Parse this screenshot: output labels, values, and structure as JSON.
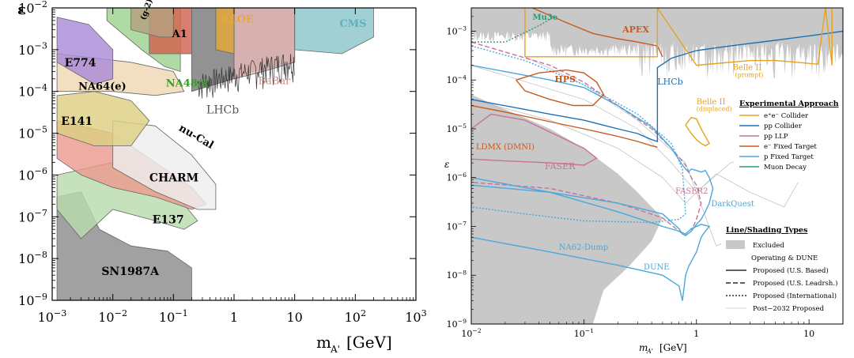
{
  "chart_data": [
    {
      "type": "area",
      "xlabel": "m",
      "xlabel_sub": "A'",
      "xlabel_unit": "[GeV]",
      "ylabel": "ε",
      "xscale": "log",
      "yscale": "log",
      "xlim": [
        0.001,
        1000
      ],
      "ylim": [
        1e-09,
        0.01
      ],
      "x_ticks": [
        "10^-3",
        "10^-2",
        "10^-1",
        "1",
        "10",
        "10^2",
        "10^3"
      ],
      "y_ticks": [
        "10^-9",
        "10^-8",
        "10^-7",
        "10^-6",
        "10^-5",
        "10^-4",
        "10^-3",
        "10^-2"
      ],
      "series": [
        {
          "name": "SN1987A",
          "color": "#8c8c8c",
          "points": [
            [
              0.0012,
              1e-09
            ],
            [
              0.0012,
              3e-07
            ],
            [
              0.003,
              4e-07
            ],
            [
              0.006,
              5e-08
            ],
            [
              0.02,
              2e-08
            ],
            [
              0.08,
              1.5e-08
            ],
            [
              0.2,
              6e-09
            ],
            [
              0.2,
              1e-09
            ]
          ]
        },
        {
          "name": "E137",
          "color": "#b9dcae",
          "points": [
            [
              0.0012,
              1.5e-07
            ],
            [
              0.0012,
              1e-06
            ],
            [
              0.01,
              2e-06
            ],
            [
              0.05,
              6e-07
            ],
            [
              0.15,
              2e-07
            ],
            [
              0.25,
              8e-08
            ],
            [
              0.15,
              5e-08
            ],
            [
              0.05,
              8e-08
            ],
            [
              0.01,
              1.5e-07
            ],
            [
              0.003,
              3e-08
            ]
          ]
        },
        {
          "name": "CHARM",
          "color": "#ec9a8e",
          "points": [
            [
              0.0012,
              2.5e-06
            ],
            [
              0.0012,
              2e-05
            ],
            [
              0.01,
              1e-05
            ],
            [
              0.05,
              2e-06
            ],
            [
              0.2,
              5e-07
            ],
            [
              0.35,
              2e-07
            ],
            [
              0.2,
              1.5e-07
            ],
            [
              0.05,
              3e-07
            ],
            [
              0.01,
              5e-07
            ],
            [
              0.003,
              1e-06
            ]
          ]
        },
        {
          "name": "nu-Cal",
          "color": "#eeeeee",
          "points": [
            [
              0.01,
              2e-05
            ],
            [
              0.05,
              1.5e-05
            ],
            [
              0.2,
              3e-06
            ],
            [
              0.5,
              6e-07
            ],
            [
              0.5,
              1.5e-07
            ],
            [
              0.25,
              1.5e-07
            ],
            [
              0.05,
              4e-07
            ],
            [
              0.01,
              1.5e-06
            ]
          ]
        },
        {
          "name": "E141",
          "color": "#ddd083",
          "points": [
            [
              0.0012,
              1e-05
            ],
            [
              0.0012,
              8e-05
            ],
            [
              0.005,
              0.0001
            ],
            [
              0.02,
              6e-05
            ],
            [
              0.04,
              2e-05
            ],
            [
              0.02,
              5e-06
            ],
            [
              0.005,
              5e-06
            ]
          ]
        },
        {
          "name": "NA64(e)",
          "color": "#efd7b3",
          "points": [
            [
              0.0012,
              0.0001
            ],
            [
              0.0012,
              0.0008
            ],
            [
              0.02,
              0.0005
            ],
            [
              0.1,
              0.0003
            ],
            [
              0.15,
              0.0001
            ],
            [
              0.05,
              8e-05
            ],
            [
              0.01,
              0.0001
            ]
          ]
        },
        {
          "name": "E774",
          "color": "#a98bd8",
          "points": [
            [
              0.0012,
              0.0005
            ],
            [
              0.0012,
              0.006
            ],
            [
              0.004,
              0.004
            ],
            [
              0.01,
              0.001
            ],
            [
              0.01,
              0.0002
            ],
            [
              0.005,
              0.00015
            ]
          ]
        },
        {
          "name": "NA48/2",
          "color": "#9ed28f",
          "points": [
            [
              0.008,
              0.005
            ],
            [
              0.03,
              0.001
            ],
            [
              0.07,
              0.0004
            ],
            [
              0.13,
              0.0003
            ],
            [
              0.13,
              0.01
            ],
            [
              0.008,
              0.01
            ]
          ]
        },
        {
          "name": "A1",
          "color": "#d26150",
          "points": [
            [
              0.04,
              0.01
            ],
            [
              0.04,
              0.0008
            ],
            [
              0.2,
              0.0008
            ],
            [
              0.2,
              0.01
            ]
          ]
        },
        {
          "name": "LHCb",
          "color": "#7a7a7a",
          "points": [
            [
              0.2,
              0.0001
            ],
            [
              1,
              0.0002
            ],
            [
              2,
              0.0003
            ],
            [
              10,
              0.0005
            ],
            [
              10,
              0.01
            ],
            [
              0.2,
              0.01
            ]
          ]
        },
        {
          "name": "BaBar",
          "color": "#e5b8b6",
          "points": [
            [
              1,
              0.0002
            ],
            [
              3,
              0.0003
            ],
            [
              10,
              0.0005
            ],
            [
              10,
              0.01
            ],
            [
              1,
              0.01
            ]
          ]
        },
        {
          "name": "KLOE",
          "color": "#e6a838",
          "points": [
            [
              0.5,
              0.001
            ],
            [
              1,
              0.0008
            ],
            [
              1,
              0.01
            ],
            [
              0.5,
              0.01
            ]
          ]
        },
        {
          "name": "CMS",
          "color": "#8bc6cb",
          "points": [
            [
              10,
              0.001
            ],
            [
              60,
              0.0008
            ],
            [
              200,
              0.002
            ],
            [
              200,
              0.01
            ],
            [
              10,
              0.01
            ]
          ]
        },
        {
          "name": "(g-2)_e",
          "color": "#b5a080",
          "points": [
            [
              0.02,
              0.01
            ],
            [
              0.02,
              0.003
            ],
            [
              0.06,
              0.002
            ],
            [
              0.1,
              0.002
            ],
            [
              0.1,
              0.01
            ]
          ]
        }
      ]
    },
    {
      "type": "line",
      "xlabel": "m",
      "xlabel_sub": "A'",
      "xlabel_unit": "[GeV]",
      "ylabel": "ε",
      "xscale": "log",
      "yscale": "log",
      "xlim": [
        0.01,
        20
      ],
      "ylim": [
        1e-09,
        0.003
      ],
      "x_ticks": [
        "10^-2",
        "10^-1",
        "1",
        "10"
      ],
      "y_ticks": [
        "10^-9",
        "10^-8",
        "10^-7",
        "10^-6",
        "10^-5",
        "10^-4",
        "10^-3"
      ],
      "excluded_color": "#c8c8c8",
      "series": [
        {
          "name": "LDMX (DMNI)",
          "color": "#c65a1e",
          "dash": "solid",
          "x": [
            0.01,
            0.02,
            0.05,
            0.1,
            0.2,
            0.3,
            0.4,
            0.45
          ],
          "y": [
            3e-05,
            2.2e-05,
            1.4e-05,
            1e-05,
            7e-06,
            5.5e-06,
            4.5e-06,
            4.2e-06
          ]
        },
        {
          "name": "FASER",
          "color": "#c8729a",
          "dash": "solid",
          "x": [
            0.01,
            0.015,
            0.03,
            0.06,
            0.1,
            0.13,
            0.1,
            0.05,
            0.02,
            0.01
          ],
          "y": [
            1e-05,
            2e-05,
            1.5e-05,
            7e-06,
            4e-06,
            2.5e-06,
            1.8e-06,
            2e-06,
            2.2e-06,
            2.4e-06
          ]
        },
        {
          "name": "FASER2",
          "color": "#c8729a",
          "dash": "dashed",
          "x": [
            0.01,
            0.05,
            0.1,
            0.2,
            0.4,
            0.6,
            0.8,
            0.9,
            1,
            1.1,
            1,
            0.9,
            0.8,
            0.7,
            0.5,
            0.2,
            0.05,
            0.01
          ],
          "y": [
            0.0006,
            0.0002,
            9e-05,
            3e-05,
            1e-05,
            4e-06,
            1.8e-06,
            1e-06,
            7e-07,
            3e-07,
            1.4e-07,
            8e-08,
            6.5e-08,
            8e-08,
            1.5e-07,
            3e-07,
            6e-07,
            8e-07
          ]
        },
        {
          "name": "DarkQuest",
          "color": "#49a8dc",
          "dash": "solid",
          "x": [
            0.01,
            0.05,
            0.1,
            0.2,
            0.4,
            0.6,
            0.75,
            0.85,
            0.9,
            1,
            1.1,
            1.2,
            1.3,
            1.4,
            1.3,
            1.2,
            1.1,
            1,
            0.9,
            0.8,
            0.75,
            0.7,
            0.5,
            0.2,
            0.05,
            0.01
          ],
          "y": [
            0.0002,
            0.0001,
            7e-05,
            3e-05,
            1.1e-05,
            4e-06,
            1.8e-06,
            1.3e-06,
            1.5e-06,
            1.4e-06,
            1.3e-06,
            1.4e-06,
            1e-06,
            6e-07,
            3e-07,
            2e-07,
            1.4e-07,
            1.1e-07,
            8e-08,
            6.5e-08,
            7e-08,
            9e-08,
            1.8e-07,
            3e-07,
            5e-07,
            7e-07
          ]
        },
        {
          "name": "NA62-Dump",
          "color": "#49a8dc",
          "dash": "dotted",
          "x": [
            0.01,
            0.03,
            0.1,
            0.3,
            0.6,
            0.75,
            0.8,
            0.7,
            0.4,
            0.1,
            0.03,
            0.01
          ],
          "y": [
            0.0005,
            0.00025,
            8e-05,
            2e-05,
            5e-06,
            1.5e-06,
            1.8e-07,
            1.4e-07,
            1.2e-07,
            1.3e-07,
            1.8e-07,
            2.5e-07
          ]
        },
        {
          "name": "DUNE",
          "color": "#49a8dc",
          "dash": "solid",
          "x": [
            0.01,
            0.05,
            0.2,
            0.5,
            0.7,
            0.75,
            0.78,
            0.8,
            0.85,
            1,
            1.1,
            1.2,
            1.3,
            1.1,
            0.9,
            0.8,
            0.7,
            0.5,
            0.2,
            0.05,
            0.01
          ],
          "y": [
            6e-08,
            3e-08,
            1.6e-08,
            1e-08,
            6e-09,
            3e-09,
            6e-09,
            1e-08,
            1.5e-08,
            3e-08,
            6e-08,
            8e-08,
            1e-07,
            1.1e-07,
            9e-08,
            7e-08,
            8e-08,
            1e-07,
            2e-07,
            5e-07,
            1e-06
          ]
        },
        {
          "name": "HPS",
          "color": "#c65a1e",
          "dash": "solid",
          "x": [
            0.025,
            0.04,
            0.07,
            0.1,
            0.13,
            0.15,
            0.12,
            0.08,
            0.05,
            0.03,
            0.025
          ],
          "y": [
            0.0001,
            0.00014,
            0.00016,
            0.00014,
            9e-05,
            5e-05,
            3e-05,
            3e-05,
            4e-05,
            6e-05,
            0.0001
          ]
        },
        {
          "name": "APEX",
          "color": "#c65a1e",
          "dash": "solid",
          "x": [
            0.03,
            0.07,
            0.12,
            0.2,
            0.3,
            0.45,
            0.5
          ],
          "y": [
            0.0035,
            0.0015,
            0.0009,
            0.0007,
            0.0006,
            0.0005,
            0.0003
          ]
        },
        {
          "name": "LHCb",
          "color": "#1f6fb5",
          "dash": "solid",
          "x": [
            0.01,
            0.05,
            0.1,
            0.2,
            0.3,
            0.4,
            0.45,
            0.45,
            0.6,
            1,
            2,
            5,
            10,
            20
          ],
          "y": [
            4e-05,
            2e-05,
            1.5e-05,
            1e-05,
            8e-06,
            6e-06,
            5.5e-06,
            0.00018,
            0.00028,
            0.0004,
            0.0005,
            0.00065,
            0.0008,
            0.001
          ]
        },
        {
          "name": "Belle II (prompt)",
          "color": "#e6a21e",
          "dash": "solid",
          "x": [
            0.03,
            0.03,
            0.45,
            0.45,
            1,
            3,
            5,
            8,
            12,
            14,
            16,
            16
          ],
          "y": [
            0.003,
            0.0003,
            0.0003,
            0.003,
            0.0002,
            0.00025,
            0.00025,
            0.00023,
            0.00021,
            0.003,
            0.0002,
            0.003
          ]
        },
        {
          "name": "Belle II (displaced)",
          "color": "#e6a21e",
          "dash": "solid",
          "x": [
            0.8,
            0.9,
            1,
            1.1,
            1.2,
            1.3,
            1.2,
            1.1,
            1,
            0.9,
            0.8
          ],
          "y": [
            1.2e-05,
            1.7e-05,
            1.6e-05,
            1e-05,
            7e-06,
            5e-06,
            4.5e-06,
            5e-06,
            6e-06,
            8e-06,
            1.2e-05
          ]
        },
        {
          "name": "Mu3e",
          "color": "#2a9d78",
          "dash": "dotted",
          "x": [
            0.01,
            0.02,
            0.04,
            0.055
          ],
          "y": [
            0.0006,
            0.0006,
            0.0013,
            0.002
          ]
        }
      ],
      "legend_approach": {
        "title": "Experimental Approach",
        "items": [
          {
            "label": "e⁺e⁻ Collider",
            "color": "#e6a21e"
          },
          {
            "label": "pp Collider",
            "color": "#1f6fb5"
          },
          {
            "label": "pp LLP",
            "color": "#c8729a"
          },
          {
            "label": "e⁻ Fixed Target",
            "color": "#c65a1e"
          },
          {
            "label": "p Fixed Target",
            "color": "#49a8dc"
          },
          {
            "label": "Muon Decay",
            "color": "#2a9d78"
          }
        ]
      },
      "legend_line": {
        "title": "Line/Shading Types",
        "items": [
          {
            "label": "Excluded",
            "style": "fill"
          },
          {
            "label": "Operating & DUNE",
            "style": "none"
          },
          {
            "label": "Proposed (U.S. Based)",
            "style": "solid"
          },
          {
            "label": "Proposed (U.S. Leadrsh.)",
            "style": "dashed"
          },
          {
            "label": "Proposed (International)",
            "style": "dotted"
          },
          {
            "label": "Post−2032 Proposed",
            "style": "thin"
          }
        ]
      }
    }
  ],
  "left_labels": [
    {
      "text": "E774",
      "color": "#000000"
    },
    {
      "text": "NA64(e)",
      "color": "#000000"
    },
    {
      "text": "E141",
      "color": "#000000"
    },
    {
      "text": "nu-Cal",
      "color": "#000000"
    },
    {
      "text": "CHARM",
      "color": "#000000"
    },
    {
      "text": "E137",
      "color": "#000000"
    },
    {
      "text": "SN1987A",
      "color": "#000000"
    },
    {
      "text": "NA48/2",
      "color": "#3a9c2e"
    },
    {
      "text": "A1",
      "color": "#000000"
    },
    {
      "text": "KLOE",
      "color": "#e6a838"
    },
    {
      "text": "BaBar",
      "color": "#c98a86"
    },
    {
      "text": "LHCb",
      "color": "#555555"
    },
    {
      "text": "CMS",
      "color": "#5ab4ba"
    },
    {
      "text": "(g-2)e",
      "color": "#000000"
    }
  ],
  "right_labels": [
    {
      "text": "Mu3e",
      "color": "#2a9d78"
    },
    {
      "text": "APEX",
      "color": "#c65a1e"
    },
    {
      "text": "HPS",
      "color": "#c65a1e"
    },
    {
      "text": "LHCb",
      "color": "#1f6fb5"
    },
    {
      "text": "Belle II",
      "color": "#e6a21e"
    },
    {
      "text": "(prompt)",
      "color": "#e6a21e"
    },
    {
      "text": "Belle II",
      "color": "#e6a21e"
    },
    {
      "text": "(displaced)",
      "color": "#e6a21e"
    },
    {
      "text": "LDMX (DMNI)",
      "color": "#c65a1e"
    },
    {
      "text": "FASER",
      "color": "#c8729a"
    },
    {
      "text": "FASER2",
      "color": "#c8729a"
    },
    {
      "text": "DarkQuest",
      "color": "#49a8dc"
    },
    {
      "text": "NA62-Dump",
      "color": "#49a8dc"
    },
    {
      "text": "DUNE",
      "color": "#49a8dc"
    }
  ]
}
